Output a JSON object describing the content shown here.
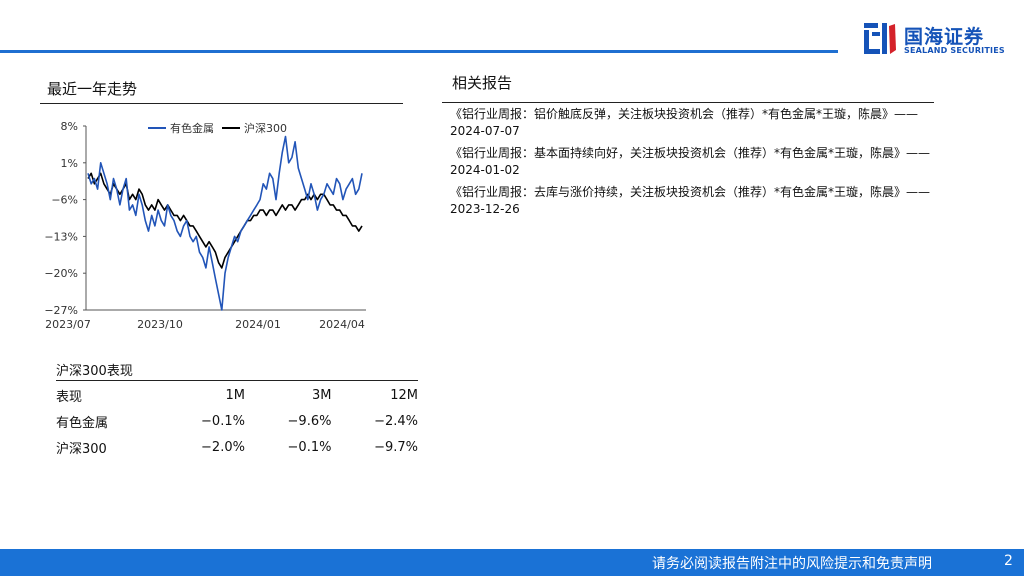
{
  "brand": {
    "name_cn": "国海证券",
    "name_en": "SEALAND SECURITIES",
    "color": "#1553b8"
  },
  "left_title": "最近一年走势",
  "chart_data": {
    "type": "line",
    "title": "",
    "legend": [
      "有色金属",
      "沪深300"
    ],
    "legend_position": "top",
    "ylim": [
      -27,
      8
    ],
    "yticks": [
      "8%",
      "1%",
      "−6%",
      "−13%",
      "−20%",
      "−27%"
    ],
    "xticks": [
      "2023/07",
      "2023/10",
      "2024/01",
      "2024/04"
    ],
    "series": [
      {
        "name": "有色金属",
        "color": "#2255b8",
        "values": [
          -1,
          -3,
          -2,
          -4,
          1,
          -1,
          -3,
          -6,
          -2,
          -4,
          -7,
          -4,
          -2,
          -8,
          -7,
          -9,
          -5,
          -7,
          -10,
          -12,
          -9,
          -11,
          -8,
          -10,
          -11,
          -7,
          -9,
          -10,
          -12,
          -13,
          -11,
          -10,
          -13,
          -14,
          -13,
          -16,
          -17,
          -19,
          -15,
          -18,
          -21,
          -24,
          -27,
          -20,
          -17,
          -15,
          -13,
          -14,
          -12,
          -11,
          -10,
          -9,
          -8,
          -7,
          -6,
          -3,
          -4,
          -1,
          -2,
          -6,
          -1,
          3,
          6,
          1,
          2,
          5,
          0,
          -2,
          -4,
          -6,
          -3,
          -5,
          -8,
          -6,
          -5,
          -3,
          -4,
          -5,
          -2,
          -3,
          -6,
          -4,
          -3,
          -2,
          -5,
          -4,
          -1
        ]
      },
      {
        "name": "沪深300",
        "color": "#000000",
        "values": [
          -2,
          -1,
          -3,
          -2,
          -1,
          -3,
          -4,
          -5,
          -3,
          -4,
          -5,
          -4,
          -3,
          -6,
          -5,
          -6,
          -4,
          -5,
          -7,
          -8,
          -7,
          -8,
          -6,
          -7,
          -8,
          -7,
          -8,
          -9,
          -9,
          -10,
          -9,
          -10,
          -11,
          -11,
          -12,
          -13,
          -14,
          -15,
          -14,
          -15,
          -16,
          -18,
          -19,
          -17,
          -16,
          -15,
          -14,
          -13,
          -12,
          -11,
          -10,
          -10,
          -9,
          -9,
          -8,
          -8,
          -9,
          -8,
          -8,
          -9,
          -8,
          -7,
          -8,
          -7,
          -7,
          -8,
          -7,
          -6,
          -6,
          -5,
          -6,
          -5,
          -6,
          -5,
          -5,
          -6,
          -7,
          -7,
          -8,
          -8,
          -9,
          -9,
          -10,
          -11,
          -11,
          -12,
          -11
        ]
      }
    ]
  },
  "perf": {
    "title": "沪深300表现",
    "headers": [
      "表现",
      "1M",
      "3M",
      "12M"
    ],
    "rows": [
      [
        "有色金属",
        "−0.1%",
        "−9.6%",
        "−2.4%"
      ],
      [
        "沪深300",
        "−2.0%",
        "−0.1%",
        "−9.7%"
      ]
    ]
  },
  "right_title": "相关报告",
  "reports": [
    "《铝行业周报：铝价触底反弹，关注板块投资机会（推荐）*有色金属*王璇，陈晨》——2024-07-07",
    "《铝行业周报：基本面持续向好，关注板块投资机会（推荐）*有色金属*王璇，陈晨》——2024-01-02",
    "《铝行业周报：去库与涨价持续，关注板块投资机会（推荐）*有色金属*王璇，陈晨》——2023-12-26"
  ],
  "footer": {
    "text": "请务必阅读报告附注中的风险提示和免责声明",
    "page": "2"
  }
}
